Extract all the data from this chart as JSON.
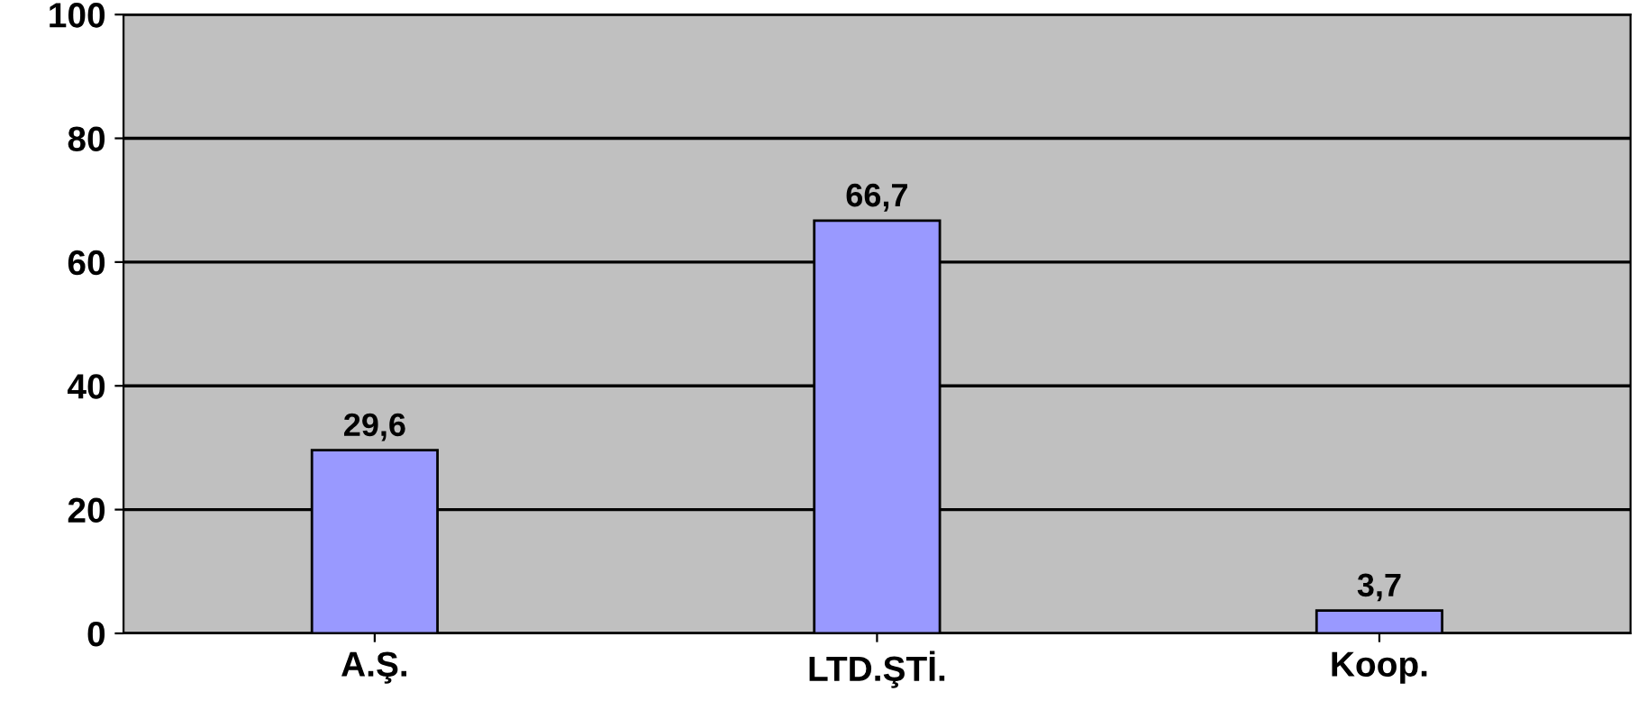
{
  "chart_data": {
    "type": "bar",
    "categories": [
      "A.Ş.",
      "LTD.ŞTİ.",
      "Koop."
    ],
    "values": [
      29.6,
      66.7,
      3.7
    ],
    "value_labels": [
      "29,6",
      "66,7",
      "3,7"
    ],
    "color": "#9999ff",
    "ylim": [
      0,
      100
    ],
    "yticks": [
      0,
      20,
      40,
      60,
      80,
      100
    ],
    "grid": "y"
  }
}
